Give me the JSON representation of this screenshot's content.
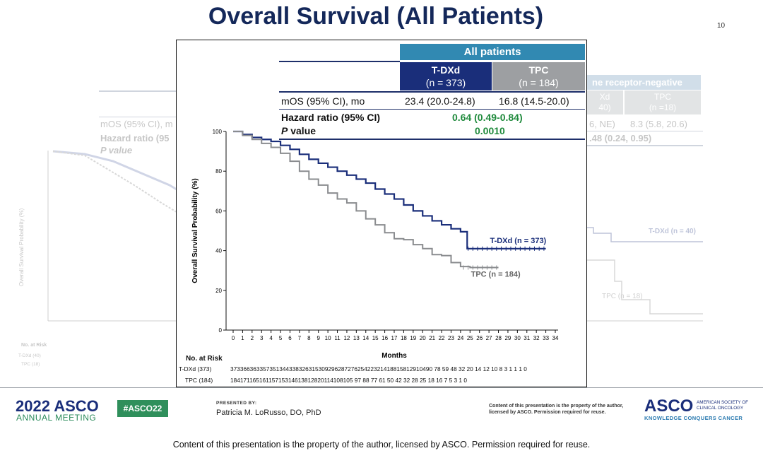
{
  "slide": {
    "title": "Overall Survival (All Patients)",
    "page_number": "10"
  },
  "background_slide": {
    "header": "ne receptor-negative",
    "col1_a": "Xd",
    "col1_b": "40)",
    "col2_a": "TPC",
    "col2_b": "(n =18)",
    "mos_label": "mOS (95% CI), m",
    "mos_value_partial": "6, NE)",
    "mos_value_tpc": "8.3 (5.8, 20.6)",
    "hr_label": "Hazard ratio (95",
    "hr_value_partial": ".48 (0.24, 0.95)",
    "pvalue_label": "P value",
    "tdxd_curve_label": "T-DXd (n = 40)",
    "tpc_curve_label": "TPC (n = 18)",
    "y_axis_label": "Overall Survival Probability (%)",
    "no_at_risk": "No. at Risk",
    "tdxd_row_label": "T-DXd (40)",
    "tpc_row_label": "TPC (18)"
  },
  "table": {
    "group_header": "All patients",
    "columns": [
      {
        "name": "T-DXd",
        "n": "(n = 373)",
        "color": "#1a2e7a"
      },
      {
        "name": "TPC",
        "n": "(n = 184)",
        "color": "#9d9fa2"
      }
    ],
    "rows": [
      {
        "label": "mOS (95% CI), mo",
        "tdxd": "23.4 (20.0-24.8)",
        "tpc": "16.8 (14.5-20.0)"
      },
      {
        "label": "Hazard ratio (95% CI)",
        "value": "0.64 (0.49-0.84)"
      },
      {
        "label_italic": "P",
        "label_rest": " value",
        "value": "0.0010"
      }
    ]
  },
  "chart_data": {
    "type": "line",
    "title": "",
    "xlabel": "Months",
    "ylabel": "Overall Survival Probability (%)",
    "xlim": [
      0,
      34
    ],
    "ylim": [
      0,
      100
    ],
    "x_ticks": [
      0,
      1,
      2,
      3,
      4,
      5,
      6,
      7,
      8,
      9,
      10,
      11,
      12,
      13,
      14,
      15,
      16,
      17,
      18,
      19,
      20,
      21,
      22,
      23,
      24,
      25,
      26,
      27,
      28,
      29,
      30,
      31,
      32,
      33,
      34
    ],
    "y_ticks": [
      0,
      20,
      40,
      60,
      80,
      100
    ],
    "grid": false,
    "series": [
      {
        "name": "T-DXd (n = 373)",
        "color": "#1a2e7a",
        "x": [
          0,
          1,
          2,
          3,
          4,
          5,
          6,
          7,
          8,
          9,
          10,
          11,
          12,
          13,
          14,
          15,
          16,
          17,
          18,
          19,
          20,
          21,
          22,
          23,
          24,
          24.7,
          25,
          26,
          27,
          28,
          29,
          30,
          31,
          32,
          33
        ],
        "y": [
          100,
          98.5,
          97,
          96,
          95,
          93,
          91,
          88.5,
          86,
          84,
          82,
          80,
          78,
          76,
          74,
          71,
          68.5,
          66,
          63,
          60,
          57.5,
          55,
          53,
          51,
          49.5,
          41,
          41,
          41,
          41,
          41,
          41,
          41,
          41,
          41,
          41
        ]
      },
      {
        "name": "TPC (n = 184)",
        "color": "#8a8c8f",
        "x": [
          0,
          1,
          2,
          3,
          4,
          5,
          6,
          7,
          8,
          9,
          10,
          11,
          12,
          13,
          14,
          15,
          16,
          17,
          18,
          19,
          20,
          21,
          22,
          23,
          24,
          25,
          26,
          27,
          28
        ],
        "y": [
          100,
          98,
          96,
          94,
          92,
          89,
          85,
          80,
          76,
          73,
          69,
          66,
          64,
          60,
          56,
          53,
          49,
          46,
          45.5,
          43,
          41,
          38,
          37.5,
          34,
          32,
          31.5,
          31.5,
          31.5,
          31.5
        ]
      }
    ],
    "curve_labels": [
      "T-DXd (n = 373)",
      "TPC (n = 184)"
    ]
  },
  "risk_table": {
    "title": "No. at Risk",
    "rows": [
      {
        "label": "T-DXd (373)",
        "values": "37336636335735134433832631530929628727625422321418815812910490 78 59 48 32 20 14 12 10 8 3 1 1 1 0"
      },
      {
        "label": "TPC (184)",
        "values": "18417116516115715314613812820114108105 97 88 77 61 50 42 32 28 25 18 16 7 5 3 1 0"
      }
    ]
  },
  "footer": {
    "meeting_year": "2022 ASCO",
    "meeting_name": "ANNUAL MEETING",
    "hashtag": "#ASCO22",
    "presented_by_label": "PRESENTED BY:",
    "presenter": "Patricia M. LoRusso, DO, PhD",
    "copyright_small": "Content of this presentation is the property of the author, licensed by ASCO. Permission required for reuse.",
    "asco_logo": "ASCO",
    "asco_society": "AMERICAN SOCIETY OF CLINICAL ONCOLOGY",
    "asco_tagline": "KNOWLEDGE CONQUERS CANCER",
    "bottom_copyright": "Content of this presentation is the property of the author, licensed by ASCO. Permission required for reuse."
  }
}
